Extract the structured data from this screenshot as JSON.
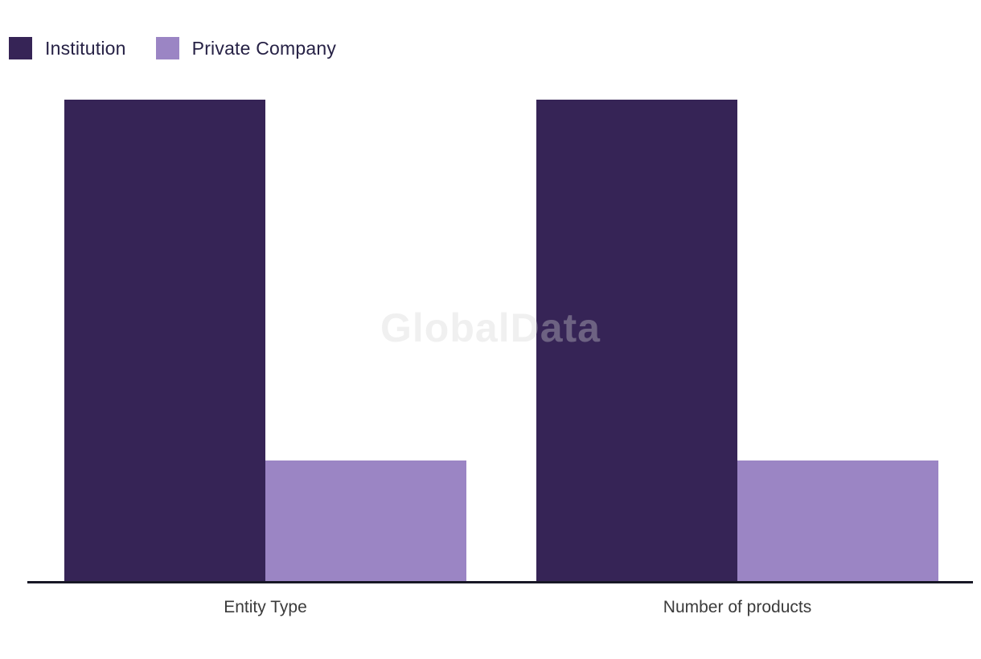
{
  "chart_data": {
    "type": "bar",
    "title": "",
    "categories": [
      "Entity Type",
      "Number of products"
    ],
    "series": [
      {
        "name": "Institution",
        "color": "#362456",
        "values": [
          1.0,
          1.0
        ]
      },
      {
        "name": "Private Company",
        "color": "#9B85C4",
        "values": [
          0.25,
          0.25
        ]
      }
    ],
    "ylim": [
      0,
      1
    ],
    "value_axis": "hidden",
    "grid": "off",
    "legend_position": "top-left",
    "watermark": "GlobalData"
  },
  "colors": {
    "background": "#FFFFFF",
    "axis_line": "#181826",
    "legend_text": "#262145",
    "category_label": "#3B3B3B",
    "watermark_text": "#D5D5D5"
  }
}
